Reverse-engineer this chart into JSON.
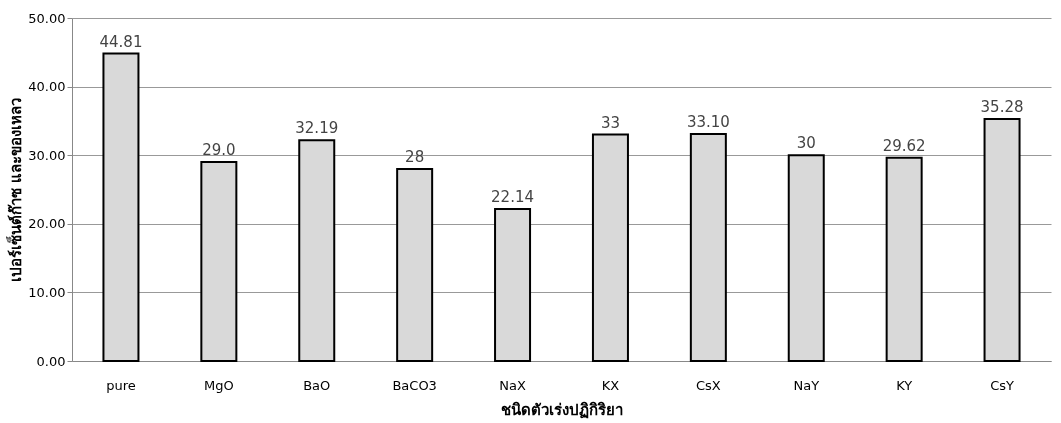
{
  "chart_data": {
    "type": "bar",
    "xlabel": "ชนิดตัวเร่งปฏิกิริยา",
    "ylabel": "เปอร์เซ็นต์ก๊าซ และของเหลว",
    "categories": [
      "pure",
      "MgO",
      "BaO",
      "BaCO3",
      "NaX",
      "KX",
      "CsX",
      "NaY",
      "KY",
      "CsY"
    ],
    "values": [
      44.81,
      29.0,
      32.19,
      28,
      22.14,
      33,
      33.1,
      30,
      29.62,
      35.28
    ],
    "value_labels": [
      "44.81",
      "29.0",
      "32.19",
      "28",
      "22.14",
      "33",
      "33.10",
      "30",
      "29.62",
      "35.28"
    ],
    "color": "#d9d9d9",
    "ylim": [
      0,
      50
    ],
    "yticks": [
      {
        "value": 0,
        "label": "0.00"
      },
      {
        "value": 10,
        "label": "10.00"
      },
      {
        "value": 20,
        "label": "20.00"
      },
      {
        "value": 30,
        "label": "30.00"
      },
      {
        "value": 40,
        "label": "40.00"
      },
      {
        "value": 50,
        "label": "50.00"
      }
    ],
    "grid": "y"
  }
}
